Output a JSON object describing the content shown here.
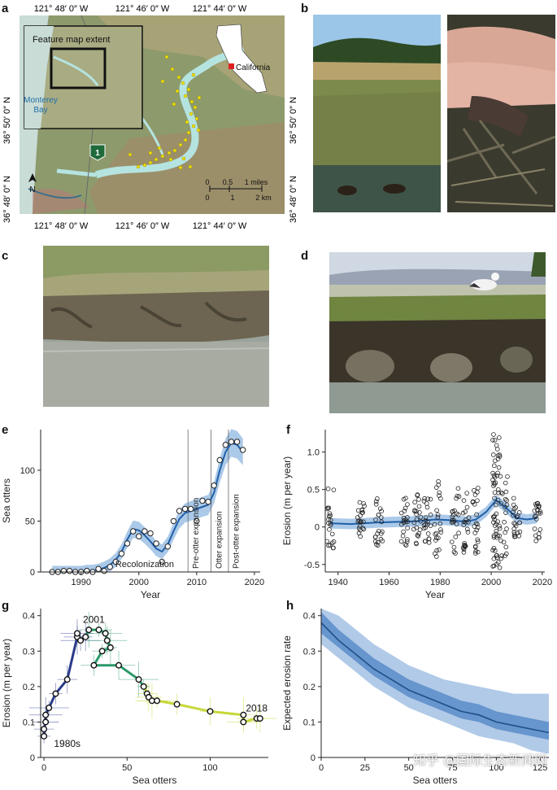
{
  "panels": {
    "a": "a",
    "b": "b",
    "c": "c",
    "d": "d",
    "e": "e",
    "f": "f",
    "g": "g",
    "h": "h"
  },
  "map": {
    "lon_top": [
      "121° 48′ 0″ W",
      "121° 46′ 0″ W",
      "121° 44′ 0″ W"
    ],
    "lon_bottom": [
      "121° 48′ 0″ W",
      "121° 46′ 0″ W",
      "121° 44′ 0″ W"
    ],
    "lat_left": [
      "36° 50′ 0″ N",
      "36° 48′ 0″ N"
    ],
    "lat_right": [
      "36° 50′ 0″ N",
      "36° 48′ 0″ N"
    ],
    "inset_label": "Feature map extent",
    "bay_label_1": "Monterey",
    "bay_label_2": "Bay",
    "state_label": "California",
    "north_label": "N",
    "highway": "1",
    "scale_miles": [
      "0",
      "0.5",
      "1 miles"
    ],
    "scale_km": [
      "0",
      "1",
      "2 km"
    ],
    "colors": {
      "water": "#a8d8d8",
      "land": "#9aa37a",
      "otters": "#f2e200",
      "inset_border": "#111111",
      "state_marker": "#e02020"
    }
  },
  "chart_data": [
    {
      "panel": "e",
      "type": "line",
      "xlabel": "Year",
      "ylabel": "Sea otters",
      "xlim": [
        1983,
        2021
      ],
      "ylim": [
        0,
        140
      ],
      "xticks": [
        1990,
        2000,
        2010,
        2020
      ],
      "yticks": [
        0,
        50,
        100
      ],
      "x": [
        1985,
        1986,
        1987,
        1988,
        1989,
        1990,
        1991,
        1992,
        1993,
        1994,
        1995,
        1996,
        1997,
        1998,
        1999,
        2000,
        2001,
        2002,
        2003,
        2004,
        2005,
        2006,
        2007,
        2008,
        2009,
        2010,
        2011,
        2012,
        2013,
        2014,
        2015,
        2016,
        2017,
        2018
      ],
      "y": [
        0,
        0,
        1,
        1,
        0,
        0,
        1,
        0,
        3,
        1,
        5,
        10,
        18,
        28,
        40,
        35,
        40,
        38,
        28,
        10,
        25,
        50,
        60,
        62,
        62,
        50,
        70,
        69,
        85,
        110,
        125,
        128,
        128,
        120
      ],
      "fit": [
        0,
        0,
        0,
        0,
        0,
        0,
        1,
        1,
        2,
        4,
        7,
        12,
        20,
        32,
        42,
        41,
        36,
        30,
        23,
        20,
        27,
        40,
        52,
        58,
        60,
        62,
        64,
        66,
        78,
        100,
        118,
        127,
        125,
        118
      ],
      "vlines": [
        2008.5,
        2012.5,
        2015.5
      ],
      "annotations": [
        "Recolonization",
        "Pre-otter expansion",
        "Otter expansion",
        "Post-otter expansion"
      ],
      "colors": {
        "fit": "#1f5fa8",
        "band": "#8fb7e0",
        "point_fill": "#ffffff"
      }
    },
    {
      "panel": "f",
      "type": "scatter",
      "xlabel": "Year",
      "ylabel": "Erosion (m per year)",
      "xlim": [
        1935,
        2021
      ],
      "ylim": [
        -0.6,
        1.3
      ],
      "xticks": [
        1940,
        1960,
        1980,
        2000,
        2020
      ],
      "yticks": [
        -0.5,
        0,
        0.5,
        1.0
      ],
      "survey_years": [
        1937,
        1949,
        1956,
        1966,
        1971,
        1975,
        1979,
        1986,
        1990,
        1994,
        2002,
        2005,
        2010,
        2018
      ],
      "spread": [
        0.45,
        0.25,
        0.35,
        0.35,
        0.35,
        0.35,
        0.55,
        0.45,
        0.45,
        0.45,
        0.9,
        0.6,
        0.3,
        0.3
      ],
      "fit_x": [
        1937,
        1945,
        1955,
        1965,
        1972,
        1978,
        1984,
        1990,
        1994,
        1998,
        2002,
        2006,
        2010,
        2014,
        2018
      ],
      "fit_y": [
        0.05,
        0.04,
        0.06,
        0.07,
        0.08,
        0.1,
        0.09,
        0.07,
        0.1,
        0.2,
        0.36,
        0.25,
        0.12,
        0.1,
        0.12
      ],
      "colors": {
        "fit": "#1f5fa8",
        "band": "#8fb7e0",
        "point_stroke": "#222222"
      }
    },
    {
      "panel": "g",
      "type": "line",
      "xlabel": "Sea otters",
      "ylabel": "Erosion (m per year)",
      "xlim": [
        -2,
        135
      ],
      "ylim": [
        0,
        0.42
      ],
      "xticks": [
        0,
        50,
        100
      ],
      "yticks": [
        0,
        0.1,
        0.2,
        0.3,
        0.4
      ],
      "x": [
        0,
        0,
        1,
        1,
        3,
        7,
        14,
        20,
        20,
        22,
        25,
        27,
        33,
        37,
        38,
        40,
        35,
        30,
        45,
        57,
        60,
        62,
        63,
        65,
        68,
        80,
        100,
        120,
        120,
        128,
        130
      ],
      "y": [
        0.06,
        0.08,
        0.1,
        0.12,
        0.14,
        0.18,
        0.22,
        0.34,
        0.35,
        0.33,
        0.34,
        0.36,
        0.36,
        0.35,
        0.33,
        0.31,
        0.3,
        0.26,
        0.26,
        0.22,
        0.2,
        0.18,
        0.17,
        0.16,
        0.16,
        0.15,
        0.13,
        0.12,
        0.1,
        0.11,
        0.11
      ],
      "annotations": [
        "2001",
        "2018",
        "1980s"
      ],
      "colors": {
        "early": "#2a3a8a",
        "mid": "#2a9a6a",
        "late": "#c8d83a",
        "point_fill": "#ffffff"
      }
    },
    {
      "panel": "h",
      "type": "line",
      "xlabel": "Sea otters",
      "ylabel": "Expected erosion rate",
      "xlim": [
        0,
        130
      ],
      "ylim": [
        0,
        0.42
      ],
      "xticks": [
        0,
        25,
        50,
        75,
        100,
        125
      ],
      "yticks": [
        0,
        0.1,
        0.2,
        0.3,
        0.4
      ],
      "x": [
        0,
        10,
        20,
        30,
        40,
        50,
        60,
        70,
        80,
        90,
        100,
        110,
        120,
        130
      ],
      "y": [
        0.38,
        0.33,
        0.29,
        0.25,
        0.22,
        0.19,
        0.17,
        0.15,
        0.13,
        0.12,
        0.1,
        0.09,
        0.08,
        0.07
      ],
      "band_outer_lo": [
        0.32,
        0.28,
        0.24,
        0.2,
        0.17,
        0.14,
        0.12,
        0.1,
        0.08,
        0.06,
        0.05,
        0.04,
        0.02,
        0.01
      ],
      "band_outer_hi": [
        0.44,
        0.4,
        0.36,
        0.32,
        0.29,
        0.26,
        0.24,
        0.22,
        0.21,
        0.2,
        0.19,
        0.18,
        0.18,
        0.18
      ],
      "band_inner_lo": [
        0.35,
        0.31,
        0.27,
        0.23,
        0.2,
        0.17,
        0.15,
        0.13,
        0.11,
        0.1,
        0.08,
        0.07,
        0.06,
        0.05
      ],
      "band_inner_hi": [
        0.41,
        0.36,
        0.32,
        0.28,
        0.25,
        0.22,
        0.2,
        0.18,
        0.16,
        0.15,
        0.13,
        0.12,
        0.11,
        0.1
      ],
      "colors": {
        "fit": "#1f4f88",
        "inner": "#5a8cc8",
        "outer": "#a8c4e6"
      }
    }
  ],
  "watermark": "知乎 @国际生态新闻网"
}
